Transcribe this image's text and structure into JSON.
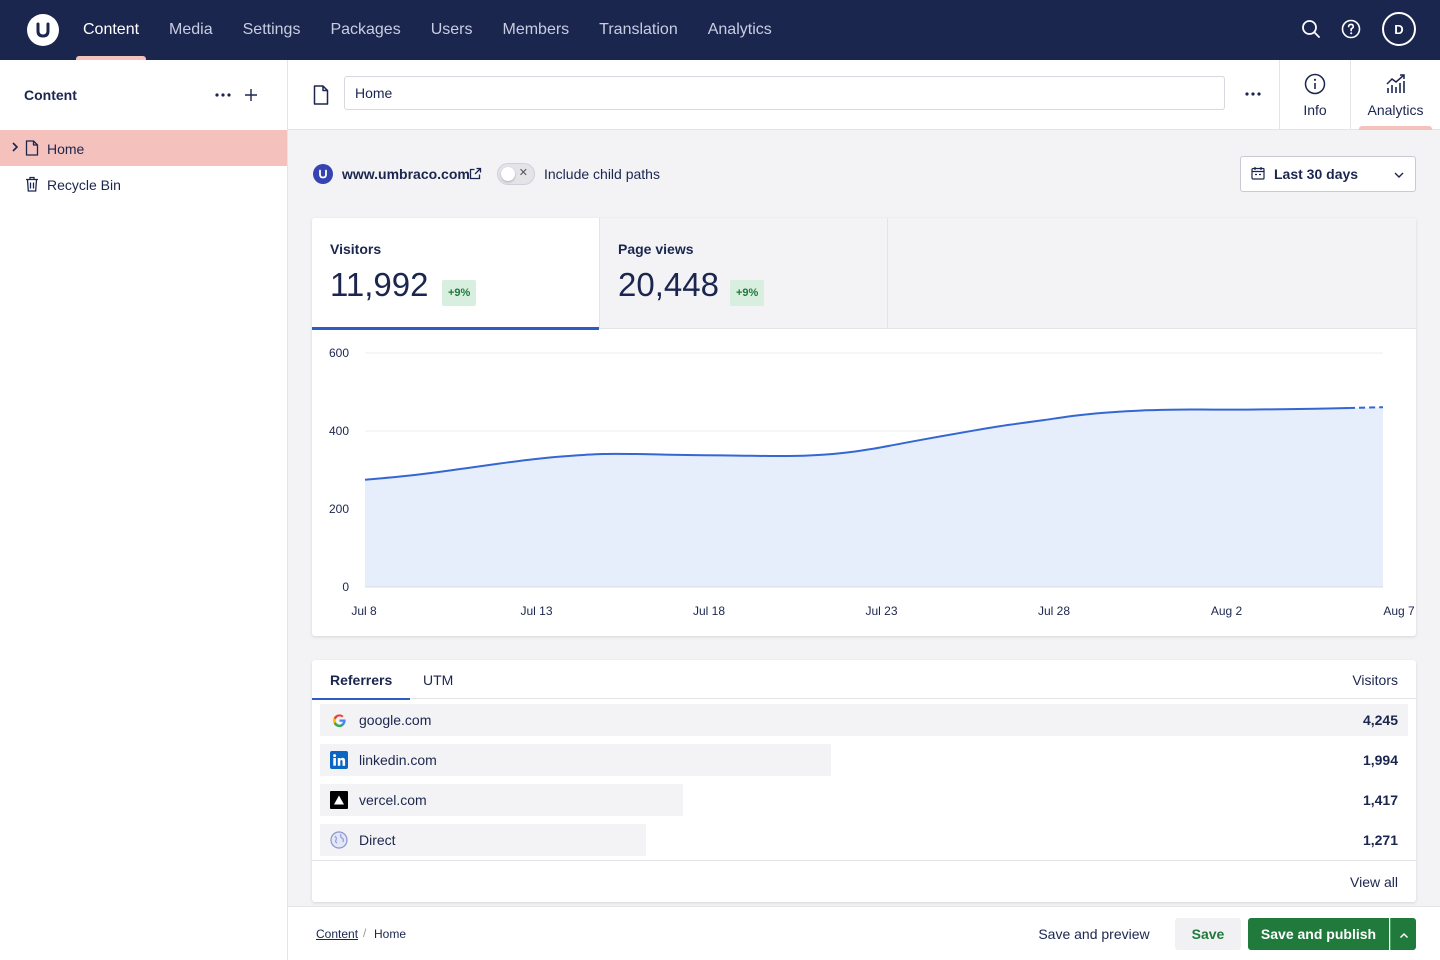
{
  "topbar": {
    "nav": [
      {
        "label": "Content",
        "active": true
      },
      {
        "label": "Media"
      },
      {
        "label": "Settings"
      },
      {
        "label": "Packages"
      },
      {
        "label": "Users"
      },
      {
        "label": "Members"
      },
      {
        "label": "Translation"
      },
      {
        "label": "Analytics"
      }
    ],
    "avatar_initial": "D"
  },
  "sidebar": {
    "title": "Content",
    "items": [
      {
        "label": "Home",
        "active": true
      },
      {
        "label": "Recycle Bin"
      }
    ]
  },
  "editor": {
    "name_value": "Home",
    "views": [
      {
        "label": "Info"
      },
      {
        "label": "Analytics",
        "active": true
      }
    ]
  },
  "filters": {
    "site": "www.umbraco.com",
    "include_child_paths_label": "Include child paths",
    "include_child_paths": false,
    "range": "Last 30 days"
  },
  "kpis": [
    {
      "title": "Visitors",
      "value": "11,992",
      "delta": "+9%"
    },
    {
      "title": "Page views",
      "value": "20,448",
      "delta": "+9%"
    }
  ],
  "chart_data": {
    "type": "area",
    "x_tick_labels": [
      "Jul 8",
      "Jul 13",
      "Jul 18",
      "Jul 23",
      "Jul 28",
      "Aug 2",
      "Aug 7"
    ],
    "y_tick_labels": [
      "0",
      "200",
      "400",
      "600"
    ],
    "ylim": [
      0,
      600
    ],
    "grid": true,
    "series": [
      {
        "x": [
          "Jul 8",
          "Jul 9",
          "Jul 10",
          "Jul 11",
          "Jul 12",
          "Jul 13",
          "Jul 14",
          "Jul 15",
          "Jul 16",
          "Jul 17",
          "Jul 18",
          "Jul 19",
          "Jul 20",
          "Jul 21",
          "Jul 22",
          "Jul 23",
          "Jul 24",
          "Jul 25",
          "Jul 26",
          "Jul 27",
          "Jul 28",
          "Jul 29",
          "Jul 30",
          "Jul 31",
          "Aug 1",
          "Aug 2",
          "Aug 3",
          "Aug 4",
          "Aug 5",
          "Aug 6",
          "Aug 7"
        ],
        "values": [
          275,
          283,
          293,
          305,
          317,
          328,
          336,
          341,
          341,
          339,
          338,
          337,
          336,
          337,
          343,
          355,
          371,
          387,
          402,
          416,
          428,
          440,
          448,
          453,
          455,
          455,
          455,
          456,
          457,
          459,
          461
        ],
        "projected_from": "Aug 6",
        "color": "#3567d2",
        "fill": "#e6edfb"
      }
    ]
  },
  "referrers": {
    "tabs": [
      {
        "label": "Referrers",
        "active": true
      },
      {
        "label": "UTM"
      }
    ],
    "column": "Visitors",
    "rows": [
      {
        "name": "google.com",
        "count": "4,245",
        "value": 4245,
        "icon": "google-icon"
      },
      {
        "name": "linkedin.com",
        "count": "1,994",
        "value": 1994,
        "icon": "linkedin-icon"
      },
      {
        "name": "vercel.com",
        "count": "1,417",
        "value": 1417,
        "icon": "vercel-icon"
      },
      {
        "name": "Direct",
        "count": "1,271",
        "value": 1271,
        "icon": "globe-icon"
      }
    ],
    "view_all": "View all"
  },
  "footer": {
    "breadcrumb": [
      "Content",
      "Home"
    ],
    "save_preview": "Save and preview",
    "save": "Save",
    "save_publish": "Save and publish"
  },
  "colors": {
    "topbar": "#1b264f",
    "accent_pink": "#f5c1bc",
    "chart_line": "#3567d2",
    "publish_green": "#1f7a3c",
    "positive_badge": "#d8eede"
  }
}
